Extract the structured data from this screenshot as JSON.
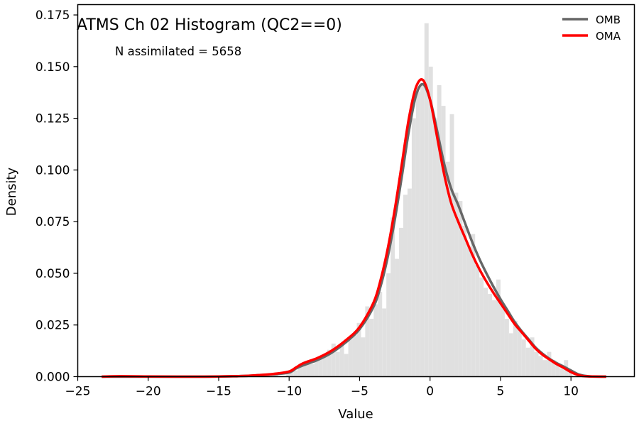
{
  "chart_data": {
    "type": "histogram",
    "title": "ATMS Ch 02 Histogram (QC2==0)",
    "annotation": "N assimilated = 5658",
    "xlabel": "Value",
    "ylabel": "Density",
    "xlim": [
      -25,
      14.5
    ],
    "ylim": [
      0,
      0.18
    ],
    "xticks": [
      -25,
      -20,
      -15,
      -10,
      -5,
      0,
      5,
      10
    ],
    "xtick_labels": [
      "−25",
      "−20",
      "−15",
      "−10",
      "−5",
      "0",
      "5",
      "10"
    ],
    "yticks": [
      0,
      0.025,
      0.05,
      0.075,
      0.1,
      0.125,
      0.15,
      0.175
    ],
    "ytick_labels": [
      "0.000",
      "0.025",
      "0.050",
      "0.075",
      "0.100",
      "0.125",
      "0.150",
      "0.175"
    ],
    "grid": false,
    "legend": "top-right",
    "histogram": {
      "bin_width": 0.3,
      "color": "#e0e0e0",
      "bins": [
        [
          -12.0,
          0.0006
        ],
        [
          -11.1,
          0.0012
        ],
        [
          -10.2,
          0.0018
        ],
        [
          -10.0,
          0.002
        ],
        [
          -9.7,
          0.003
        ],
        [
          -9.4,
          0.005
        ],
        [
          -9.1,
          0.006
        ],
        [
          -8.8,
          0.007
        ],
        [
          -8.5,
          0.006
        ],
        [
          -8.2,
          0.008
        ],
        [
          -7.9,
          0.009
        ],
        [
          -7.6,
          0.01
        ],
        [
          -7.3,
          0.013
        ],
        [
          -7.0,
          0.016
        ],
        [
          -6.7,
          0.012
        ],
        [
          -6.4,
          0.015
        ],
        [
          -6.1,
          0.011
        ],
        [
          -5.8,
          0.018
        ],
        [
          -5.5,
          0.02
        ],
        [
          -5.2,
          0.026
        ],
        [
          -4.9,
          0.019
        ],
        [
          -4.6,
          0.034
        ],
        [
          -4.3,
          0.028
        ],
        [
          -4.0,
          0.035
        ],
        [
          -3.7,
          0.041
        ],
        [
          -3.4,
          0.033
        ],
        [
          -3.1,
          0.05
        ],
        [
          -2.8,
          0.077
        ],
        [
          -2.5,
          0.057
        ],
        [
          -2.2,
          0.072
        ],
        [
          -1.9,
          0.088
        ],
        [
          -1.6,
          0.091
        ],
        [
          -1.3,
          0.125
        ],
        [
          -1.0,
          0.138
        ],
        [
          -0.7,
          0.142
        ],
        [
          -0.4,
          0.171
        ],
        [
          -0.1,
          0.15
        ],
        [
          0.2,
          0.125
        ],
        [
          0.5,
          0.141
        ],
        [
          0.8,
          0.131
        ],
        [
          1.1,
          0.104
        ],
        [
          1.4,
          0.127
        ],
        [
          1.7,
          0.089
        ],
        [
          2.0,
          0.085
        ],
        [
          2.3,
          0.073
        ],
        [
          2.6,
          0.063
        ],
        [
          2.9,
          0.069
        ],
        [
          3.2,
          0.054
        ],
        [
          3.5,
          0.048
        ],
        [
          3.8,
          0.043
        ],
        [
          4.1,
          0.04
        ],
        [
          4.4,
          0.037
        ],
        [
          4.7,
          0.047
        ],
        [
          5.0,
          0.034
        ],
        [
          5.3,
          0.028
        ],
        [
          5.6,
          0.021
        ],
        [
          5.9,
          0.027
        ],
        [
          6.2,
          0.023
        ],
        [
          6.5,
          0.018
        ],
        [
          6.8,
          0.014
        ],
        [
          7.1,
          0.019
        ],
        [
          7.4,
          0.012
        ],
        [
          7.7,
          0.01
        ],
        [
          8.0,
          0.008
        ],
        [
          8.3,
          0.012
        ],
        [
          8.6,
          0.008
        ],
        [
          8.9,
          0.006
        ],
        [
          9.2,
          0.004
        ],
        [
          9.5,
          0.008
        ],
        [
          9.8,
          0.002
        ]
      ]
    },
    "series": [
      {
        "name": "OMB",
        "color": "#666666",
        "x": [
          -23.3,
          -22,
          -20,
          -18,
          -16,
          -14,
          -13,
          -12,
          -11,
          -10,
          -9.5,
          -9,
          -8,
          -7,
          -6,
          -5,
          -4,
          -3.5,
          -3,
          -2.5,
          -2,
          -1.5,
          -1,
          -0.5,
          0,
          0.5,
          1,
          1.5,
          2,
          2.5,
          3,
          3.5,
          4,
          4.5,
          5,
          5.5,
          6,
          6.5,
          7,
          7.5,
          8,
          8.5,
          9,
          9.5,
          10,
          10.5,
          11,
          11.5,
          12.5
        ],
        "y": [
          0,
          0,
          0,
          0,
          0,
          0.0002,
          0.0004,
          0.0008,
          0.0012,
          0.002,
          0.004,
          0.0055,
          0.008,
          0.0115,
          0.0165,
          0.023,
          0.034,
          0.044,
          0.058,
          0.076,
          0.097,
          0.119,
          0.136,
          0.1415,
          0.134,
          0.119,
          0.103,
          0.091,
          0.083,
          0.074,
          0.065,
          0.057,
          0.05,
          0.0435,
          0.0375,
          0.032,
          0.0265,
          0.022,
          0.018,
          0.014,
          0.011,
          0.0085,
          0.0065,
          0.0048,
          0.003,
          0.0012,
          0.0004,
          0.0001,
          0
        ]
      },
      {
        "name": "OMA",
        "color": "#ff0000",
        "x": [
          -23.3,
          -22,
          -20,
          -18,
          -16,
          -14,
          -13,
          -12,
          -11,
          -10,
          -9.5,
          -9,
          -8,
          -7,
          -6,
          -5,
          -4,
          -3.5,
          -3,
          -2.5,
          -2,
          -1.5,
          -1,
          -0.5,
          0,
          0.5,
          1,
          1.5,
          2,
          2.5,
          3,
          3.5,
          4,
          4.5,
          5,
          5.5,
          6,
          6.5,
          7,
          7.5,
          8,
          8.5,
          9,
          9.5,
          10,
          10.5,
          11,
          11.5,
          12.5
        ],
        "y": [
          0,
          0.0002,
          0.0001,
          0,
          0,
          0.0002,
          0.0004,
          0.0008,
          0.0014,
          0.0025,
          0.0045,
          0.0065,
          0.009,
          0.0125,
          0.0175,
          0.024,
          0.036,
          0.047,
          0.062,
          0.081,
          0.103,
          0.125,
          0.14,
          0.1435,
          0.134,
          0.116,
          0.098,
          0.084,
          0.075,
          0.067,
          0.059,
          0.052,
          0.046,
          0.0405,
          0.0355,
          0.0305,
          0.0255,
          0.0215,
          0.0175,
          0.0135,
          0.0105,
          0.0082,
          0.006,
          0.0042,
          0.0022,
          0.0008,
          0.0002,
          0.0001,
          0
        ]
      }
    ]
  }
}
